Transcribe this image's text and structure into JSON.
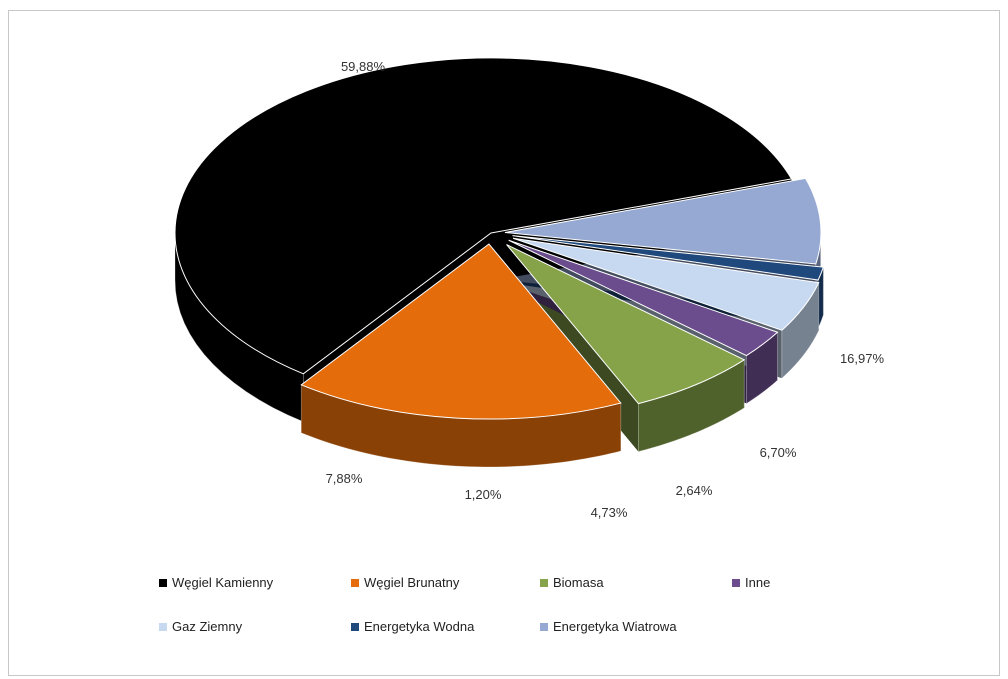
{
  "chart_data": {
    "type": "pie",
    "title": "",
    "style": "3d-exploded",
    "legend_position": "bottom",
    "slices": [
      {
        "label": "Węgiel Kamienny",
        "value": 59.88,
        "value_label": "59,88%",
        "color": "#000000"
      },
      {
        "label": "Węgiel Brunatny",
        "value": 16.97,
        "value_label": "16,97%",
        "color": "#e46c0a"
      },
      {
        "label": "Biomasa",
        "value": 6.7,
        "value_label": "6,70%",
        "color": "#86a34a"
      },
      {
        "label": "Inne",
        "value": 2.64,
        "value_label": "2,64%",
        "color": "#6b4c8c"
      },
      {
        "label": "Gaz Ziemny",
        "value": 4.73,
        "value_label": "4,73%",
        "color": "#c6d9f1"
      },
      {
        "label": "Energetyka Wodna",
        "value": 1.2,
        "value_label": "1,20%",
        "color": "#1f497d"
      },
      {
        "label": "Energetyka Wiatrowa",
        "value": 7.88,
        "value_label": "7,88%",
        "color": "#95a9d3"
      }
    ]
  }
}
